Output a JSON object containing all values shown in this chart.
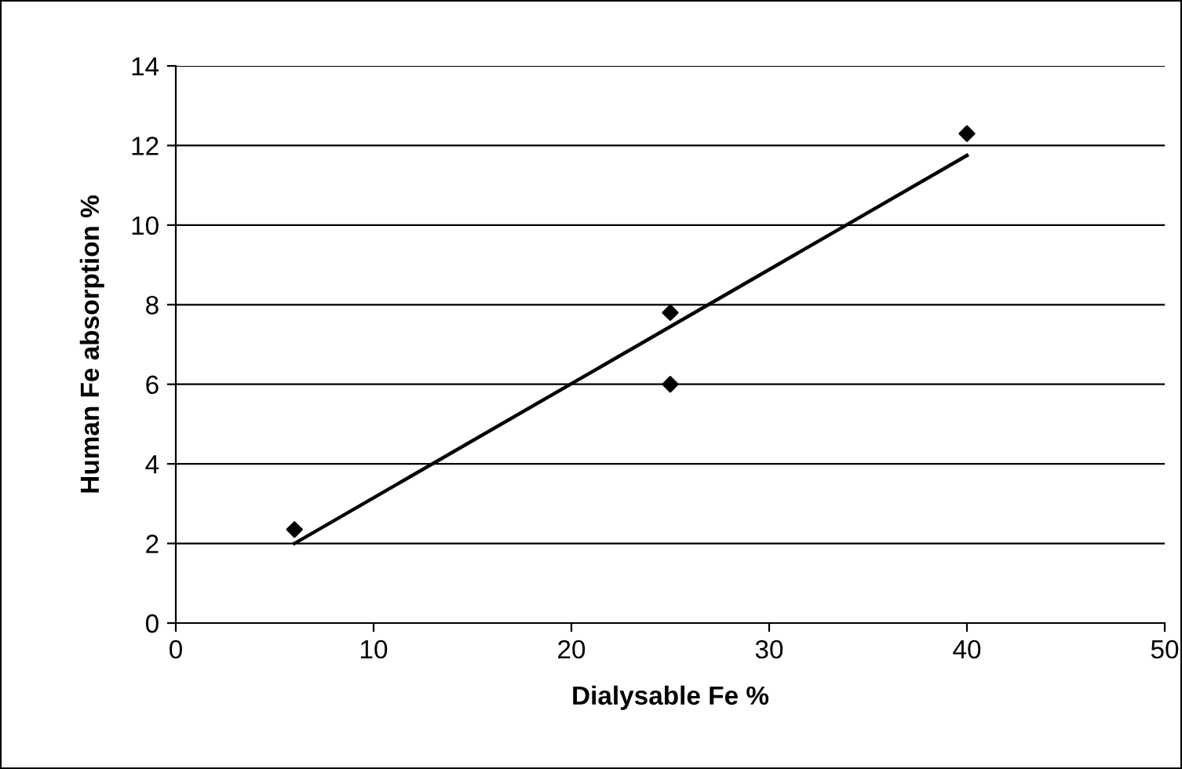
{
  "chart_data": {
    "type": "scatter",
    "xlabel": "Dialysable Fe %",
    "ylabel": "Human Fe absorption %",
    "xlim": [
      0,
      50
    ],
    "xticks": [
      0,
      10,
      20,
      30,
      40,
      50
    ],
    "ylim": [
      0,
      14
    ],
    "yticks": [
      0,
      2,
      4,
      6,
      8,
      10,
      12,
      14
    ],
    "grid": "y",
    "legend": false,
    "series": [
      {
        "color": "#000000",
        "marker": "diamond",
        "x": [
          6,
          25,
          25,
          40
        ],
        "values": [
          2.35,
          7.8,
          6.0,
          12.3
        ]
      },
      {
        "type": "line",
        "color": "#000000",
        "marker": "none",
        "line_style": "solid",
        "x": [
          6,
          40
        ],
        "values": [
          2.0,
          11.75
        ]
      }
    ]
  }
}
